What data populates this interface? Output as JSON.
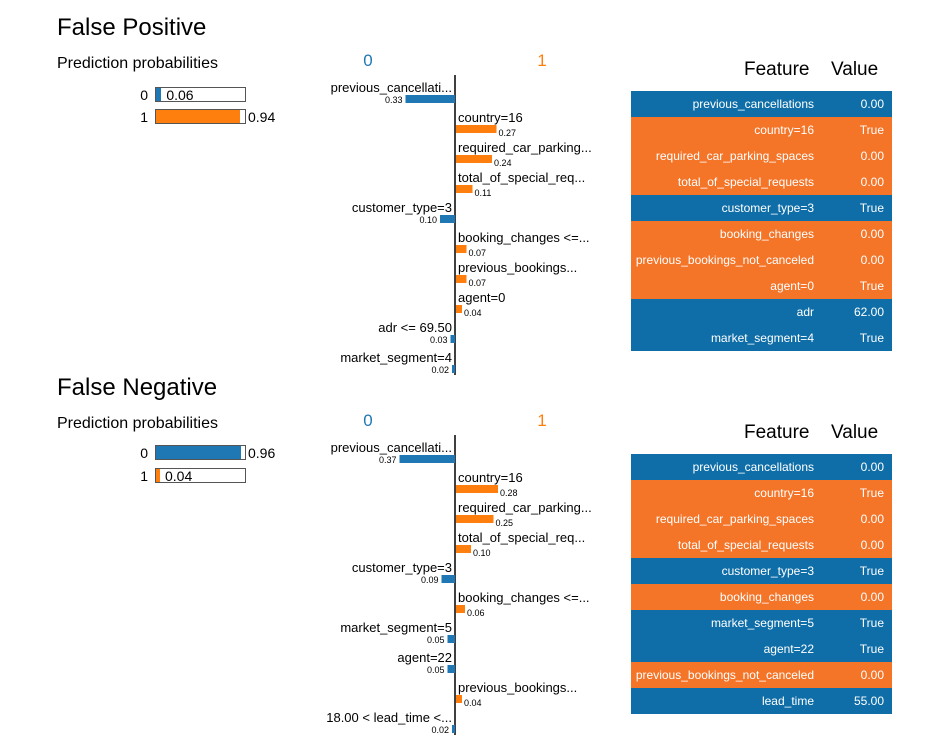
{
  "colors": {
    "class0": "#1f77b4",
    "class1": "#ff7f0e",
    "table0": "#0f6ea8",
    "table1": "#f47428"
  },
  "chart_data": [
    {
      "type": "bar",
      "title": "False Positive",
      "probabilities": {
        "title": "Prediction probabilities",
        "classes": [
          {
            "label": "0",
            "value": 0.06,
            "text": "0.06"
          },
          {
            "label": "1",
            "value": 0.94,
            "text": "0.94"
          }
        ]
      },
      "explanation": {
        "class_labels": [
          "0",
          "1"
        ],
        "features": [
          {
            "label": "previous_cancellati...",
            "weight": 0.33,
            "value_text": "0.33",
            "side": 0
          },
          {
            "label": "country=16",
            "weight": 0.27,
            "value_text": "0.27",
            "side": 1
          },
          {
            "label": "required_car_parking...",
            "weight": 0.24,
            "value_text": "0.24",
            "side": 1
          },
          {
            "label": "total_of_special_req...",
            "weight": 0.11,
            "value_text": "0.11",
            "side": 1
          },
          {
            "label": "customer_type=3",
            "weight": 0.1,
            "value_text": "0.10",
            "side": 0
          },
          {
            "label": "booking_changes <=...",
            "weight": 0.07,
            "value_text": "0.07",
            "side": 1
          },
          {
            "label": "previous_bookings...",
            "weight": 0.07,
            "value_text": "0.07",
            "side": 1
          },
          {
            "label": "agent=0",
            "weight": 0.04,
            "value_text": "0.04",
            "side": 1
          },
          {
            "label": "adr <= 69.50",
            "weight": 0.03,
            "value_text": "0.03",
            "side": 0
          },
          {
            "label": "market_segment=4",
            "weight": 0.02,
            "value_text": "0.02",
            "side": 0
          }
        ]
      },
      "table": {
        "headers": [
          "Feature",
          "Value"
        ],
        "rows": [
          {
            "feature": "previous_cancellations",
            "value": "0.00",
            "side": 0
          },
          {
            "feature": "country=16",
            "value": "True",
            "side": 1
          },
          {
            "feature": "required_car_parking_spaces",
            "value": "0.00",
            "side": 1
          },
          {
            "feature": "total_of_special_requests",
            "value": "0.00",
            "side": 1
          },
          {
            "feature": "customer_type=3",
            "value": "True",
            "side": 0
          },
          {
            "feature": "booking_changes",
            "value": "0.00",
            "side": 1
          },
          {
            "feature": "previous_bookings_not_canceled",
            "value": "0.00",
            "side": 1
          },
          {
            "feature": "agent=0",
            "value": "True",
            "side": 1
          },
          {
            "feature": "adr",
            "value": "62.00",
            "side": 0
          },
          {
            "feature": "market_segment=4",
            "value": "True",
            "side": 0
          }
        ]
      }
    },
    {
      "type": "bar",
      "title": "False Negative",
      "probabilities": {
        "title": "Prediction probabilities",
        "classes": [
          {
            "label": "0",
            "value": 0.96,
            "text": "0.96"
          },
          {
            "label": "1",
            "value": 0.04,
            "text": "0.04"
          }
        ]
      },
      "explanation": {
        "class_labels": [
          "0",
          "1"
        ],
        "features": [
          {
            "label": "previous_cancellati...",
            "weight": 0.37,
            "value_text": "0.37",
            "side": 0
          },
          {
            "label": "country=16",
            "weight": 0.28,
            "value_text": "0.28",
            "side": 1
          },
          {
            "label": "required_car_parking...",
            "weight": 0.25,
            "value_text": "0.25",
            "side": 1
          },
          {
            "label": "total_of_special_req...",
            "weight": 0.1,
            "value_text": "0.10",
            "side": 1
          },
          {
            "label": "customer_type=3",
            "weight": 0.09,
            "value_text": "0.09",
            "side": 0
          },
          {
            "label": "booking_changes <=...",
            "weight": 0.06,
            "value_text": "0.06",
            "side": 1
          },
          {
            "label": "market_segment=5",
            "weight": 0.05,
            "value_text": "0.05",
            "side": 0
          },
          {
            "label": "agent=22",
            "weight": 0.05,
            "value_text": "0.05",
            "side": 0
          },
          {
            "label": "previous_bookings...",
            "weight": 0.04,
            "value_text": "0.04",
            "side": 1
          },
          {
            "label": "18.00 < lead_time <...",
            "weight": 0.02,
            "value_text": "0.02",
            "side": 0
          }
        ]
      },
      "table": {
        "headers": [
          "Feature",
          "Value"
        ],
        "rows": [
          {
            "feature": "previous_cancellations",
            "value": "0.00",
            "side": 0
          },
          {
            "feature": "country=16",
            "value": "True",
            "side": 1
          },
          {
            "feature": "required_car_parking_spaces",
            "value": "0.00",
            "side": 1
          },
          {
            "feature": "total_of_special_requests",
            "value": "0.00",
            "side": 1
          },
          {
            "feature": "customer_type=3",
            "value": "True",
            "side": 0
          },
          {
            "feature": "booking_changes",
            "value": "0.00",
            "side": 1
          },
          {
            "feature": "market_segment=5",
            "value": "True",
            "side": 0
          },
          {
            "feature": "agent=22",
            "value": "True",
            "side": 0
          },
          {
            "feature": "previous_bookings_not_canceled",
            "value": "0.00",
            "side": 1
          },
          {
            "feature": "lead_time",
            "value": "55.00",
            "side": 0
          }
        ]
      }
    }
  ]
}
